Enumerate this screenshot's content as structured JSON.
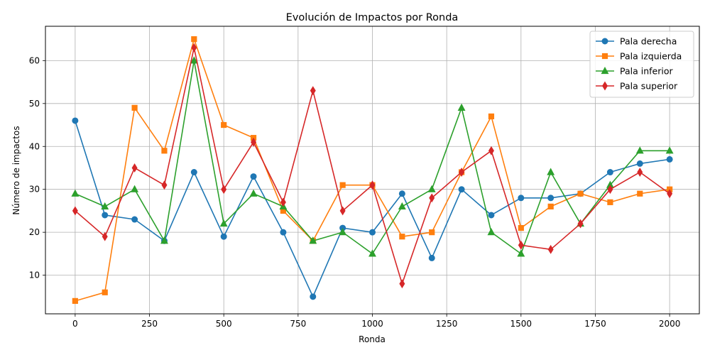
{
  "chart_data": {
    "type": "line",
    "title": "Evolución de Impactos por Ronda",
    "xlabel": "Ronda",
    "ylabel": "Número de impactos",
    "x": [
      0,
      100,
      200,
      300,
      400,
      500,
      600,
      700,
      800,
      900,
      1000,
      1100,
      1200,
      1300,
      1400,
      1500,
      1600,
      1700,
      1800,
      1900,
      2000
    ],
    "xlim": [
      -100,
      2100
    ],
    "ylim": [
      1,
      68
    ],
    "xticks": [
      0,
      250,
      500,
      750,
      1000,
      1250,
      1500,
      1750,
      2000
    ],
    "yticks": [
      10,
      20,
      30,
      40,
      50,
      60
    ],
    "grid": true,
    "legend_position": "top-right",
    "series": [
      {
        "name": "Pala derecha",
        "color": "#1f77b4",
        "marker": "circle",
        "values": [
          46,
          24,
          23,
          18,
          34,
          19,
          33,
          20,
          5,
          21,
          20,
          29,
          14,
          30,
          24,
          28,
          28,
          29,
          34,
          36,
          37
        ]
      },
      {
        "name": "Pala izquierda",
        "color": "#ff7f0e",
        "marker": "square",
        "values": [
          4,
          6,
          49,
          39,
          65,
          45,
          42,
          25,
          18,
          31,
          31,
          19,
          20,
          34,
          47,
          21,
          26,
          29,
          27,
          29,
          30
        ]
      },
      {
        "name": "Pala inferior",
        "color": "#2ca02c",
        "marker": "triangle",
        "values": [
          29,
          26,
          30,
          18,
          60,
          22,
          29,
          26,
          18,
          20,
          15,
          26,
          30,
          49,
          20,
          15,
          34,
          22,
          31,
          39,
          39
        ]
      },
      {
        "name": "Pala superior",
        "color": "#d62728",
        "marker": "diamond",
        "values": [
          25,
          19,
          35,
          31,
          63,
          30,
          41,
          27,
          53,
          25,
          31,
          8,
          28,
          34,
          39,
          17,
          16,
          22,
          30,
          34,
          29
        ]
      }
    ]
  }
}
